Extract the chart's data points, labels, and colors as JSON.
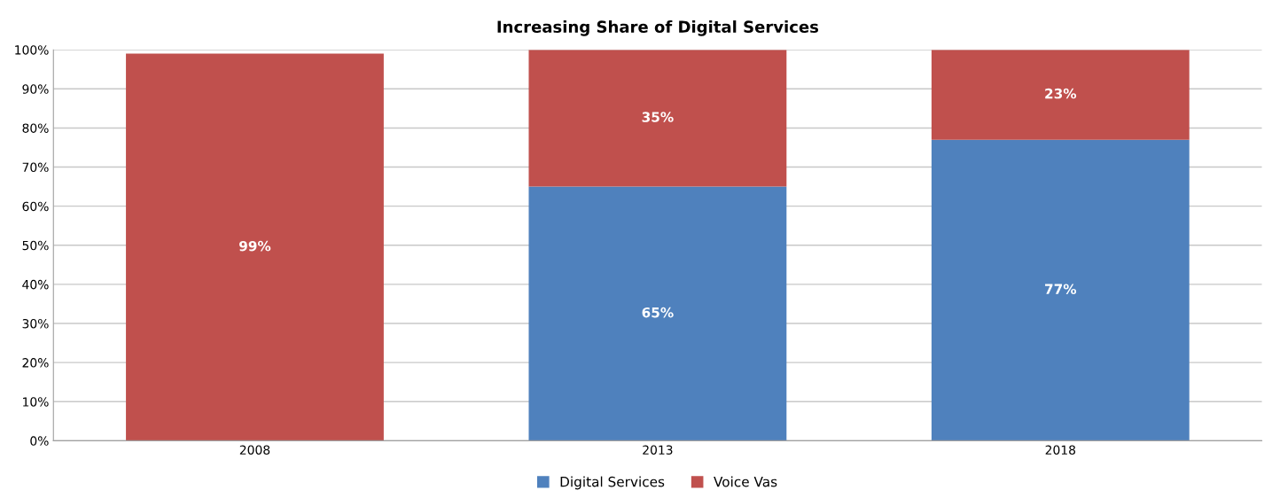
{
  "chart_data": {
    "type": "bar",
    "title": "Increasing Share of Digital Services",
    "stacked": true,
    "categories": [
      "2008",
      "2013",
      "2018"
    ],
    "series": [
      {
        "name": "Digital Services",
        "color": "#4f81bd",
        "values": [
          null,
          65,
          77
        ],
        "value_labels": [
          null,
          "65%",
          "77%"
        ]
      },
      {
        "name": "Voice Vas",
        "color": "#c0504d",
        "values": [
          99,
          35,
          23
        ],
        "value_labels": [
          "99%",
          "35%",
          "23%"
        ]
      }
    ],
    "ylim": [
      0,
      100
    ],
    "yticks": [
      {
        "value": 0,
        "label": "0%"
      },
      {
        "value": 10,
        "label": "10%"
      },
      {
        "value": 20,
        "label": "20%"
      },
      {
        "value": 30,
        "label": "30%"
      },
      {
        "value": 40,
        "label": "40%"
      },
      {
        "value": 50,
        "label": "50%"
      },
      {
        "value": 60,
        "label": "60%"
      },
      {
        "value": 70,
        "label": "70%"
      },
      {
        "value": 80,
        "label": "80%"
      },
      {
        "value": 90,
        "label": "90%"
      },
      {
        "value": 100,
        "label": "100%"
      }
    ],
    "grid": "y",
    "legend": "bottom"
  }
}
